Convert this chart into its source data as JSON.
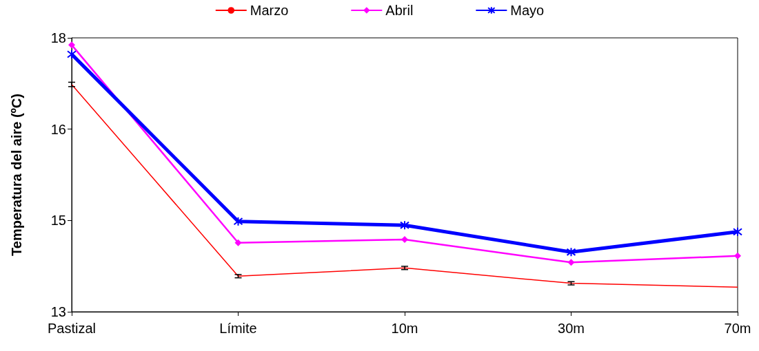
{
  "chart_data": {
    "type": "line",
    "ylabel": "Temperatura del aire (ºC)",
    "categories": [
      "Pastizal",
      "Límite",
      "10m",
      "30m",
      "70m"
    ],
    "ylim": [
      13,
      18
    ],
    "yticks": [
      13,
      {
        "value": 14.6667,
        "label": "15"
      },
      {
        "value": 16.3333,
        "label": "16"
      },
      18
    ],
    "grid": false,
    "legend": "top",
    "series": [
      {
        "name": "Marzo",
        "color": "#ff0000",
        "marker": "none",
        "values": [
          17.15,
          13.65,
          13.8,
          13.52,
          13.45
        ],
        "errors": [
          0.04,
          0.03,
          0.03,
          0.03,
          null
        ]
      },
      {
        "name": "Abril",
        "color": "#ff00ff",
        "marker": "diamond",
        "values": [
          17.87,
          14.26,
          14.32,
          13.9,
          14.02
        ]
      },
      {
        "name": "Mayo",
        "color": "#0000ff",
        "marker": "cross",
        "values": [
          17.7,
          14.65,
          14.58,
          14.09,
          14.46
        ]
      }
    ]
  }
}
